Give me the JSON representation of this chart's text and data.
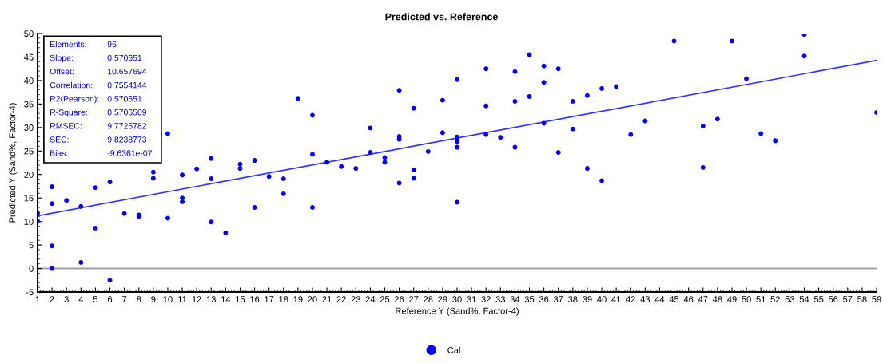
{
  "chart_data": {
    "type": "scatter",
    "title": "Predicted vs. Reference",
    "xlabel": "Reference Y (Sand%, Factor-4)",
    "ylabel": "Predicted Y (Sand%, Factor-4)",
    "xlim": [
      1,
      59
    ],
    "xticks": [
      1,
      2,
      3,
      4,
      5,
      6,
      7,
      8,
      9,
      10,
      11,
      12,
      13,
      14,
      15,
      16,
      17,
      18,
      19,
      20,
      21,
      22,
      23,
      24,
      25,
      26,
      27,
      28,
      29,
      30,
      31,
      32,
      33,
      34,
      35,
      36,
      37,
      38,
      39,
      40,
      41,
      42,
      43,
      44,
      45,
      46,
      47,
      48,
      49,
      50,
      51,
      52,
      53,
      54,
      55,
      56,
      57,
      58,
      59
    ],
    "ylim": [
      -5,
      50
    ],
    "yticks": [
      -5,
      0,
      5,
      10,
      15,
      20,
      25,
      30,
      35,
      40,
      45,
      50
    ],
    "grid": false,
    "legend": "bottom",
    "marker": "circle",
    "series": [
      {
        "name": "Cal",
        "color": "#0000ff",
        "x": [
          1,
          1,
          2,
          2,
          2,
          2,
          3,
          4,
          4,
          5,
          5,
          6,
          6,
          7,
          8,
          8,
          9,
          9,
          10,
          10,
          11,
          11,
          11,
          12,
          13,
          13,
          13,
          14,
          15,
          15,
          16,
          16,
          17,
          18,
          18,
          19,
          20,
          20,
          20,
          21,
          22,
          23,
          24,
          24,
          25,
          25,
          26,
          26,
          26,
          26,
          27,
          27,
          27,
          28,
          29,
          29,
          30,
          30,
          30,
          30,
          30,
          30,
          32,
          32,
          32,
          33,
          34,
          34,
          34,
          35,
          35,
          36,
          36,
          36,
          37,
          37,
          38,
          38,
          39,
          39,
          40,
          40,
          41,
          42,
          43,
          45,
          47,
          47,
          48,
          49,
          50,
          51,
          52,
          54,
          54,
          59
        ],
        "values": [
          11.7,
          10.1,
          17.4,
          13.8,
          4.8,
          0,
          14.5,
          13.2,
          1.3,
          17.2,
          8.6,
          18.4,
          -2.5,
          11.7,
          11.4,
          11.1,
          20.5,
          19.2,
          28.7,
          10.7,
          19.9,
          15.0,
          14.2,
          21.2,
          23.4,
          19.1,
          9.9,
          7.6,
          22.2,
          21.3,
          23.0,
          13.0,
          19.6,
          19.1,
          15.9,
          36.2,
          32.6,
          24.3,
          13.0,
          22.6,
          21.7,
          21.3,
          29.9,
          24.7,
          23.6,
          22.6,
          37.9,
          28.1,
          27.5,
          18.2,
          34.1,
          21.0,
          19.2,
          24.9,
          35.8,
          28.9,
          40.2,
          28.0,
          27.4,
          27.0,
          25.8,
          14.1,
          42.5,
          34.6,
          28.5,
          27.9,
          41.9,
          35.6,
          25.8,
          45.5,
          36.6,
          43.1,
          39.6,
          30.9,
          42.5,
          24.7,
          35.6,
          29.7,
          36.8,
          21.3,
          38.3,
          18.7,
          38.7,
          28.5,
          31.4,
          48.4,
          30.3,
          21.5,
          31.8,
          48.4,
          40.4,
          28.7,
          27.2,
          49.8,
          45.2,
          33.2
        ]
      },
      {
        "type": "line",
        "color": "#3333ff",
        "x": [
          1,
          59
        ],
        "values": [
          11.2,
          44.3
        ],
        "marker": "none"
      }
    ],
    "ref_lines": [
      {
        "axis": "y",
        "value": 0,
        "color": "#a0a0a0"
      }
    ],
    "annotations": [
      "Elements:",
      "96",
      "Slope:",
      "0.570651",
      "Offset:",
      "10.657694",
      "Correlation:",
      "0.7554144",
      "R2(Pearson):",
      "0.570651",
      "R-Square:",
      "0.5706509",
      "RMSEC:",
      "9.7725782",
      "SEC:",
      "9.8238773",
      "Bias:",
      "-9.6361e-07"
    ]
  }
}
